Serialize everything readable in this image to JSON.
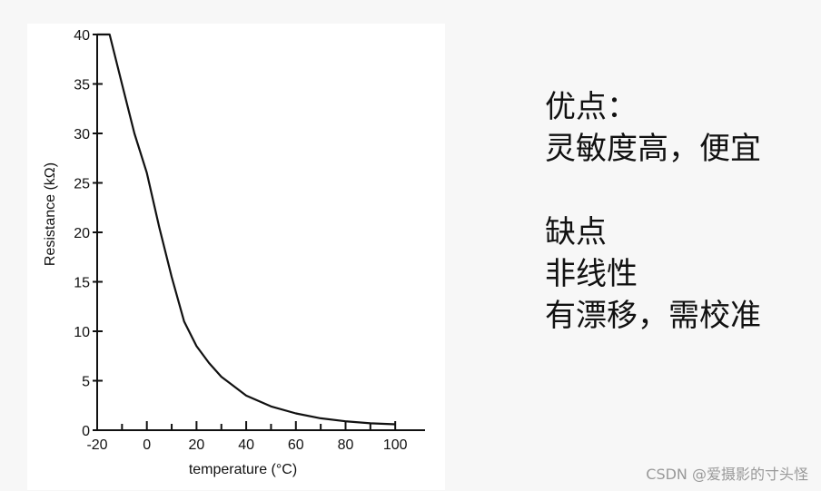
{
  "chart_data": {
    "type": "line",
    "x": [
      -20,
      -15,
      -10,
      -5,
      0,
      5,
      10,
      15,
      20,
      25,
      30,
      40,
      50,
      60,
      70,
      80,
      90,
      100
    ],
    "values": [
      40,
      40,
      35,
      30,
      26,
      20.5,
      15.5,
      11,
      8.5,
      6.8,
      5.4,
      3.5,
      2.4,
      1.7,
      1.2,
      0.9,
      0.7,
      0.6
    ],
    "color": "#111111",
    "xlabel": "temperature (°C)",
    "ylabel": "Resistance (kΩ)",
    "xlim": [
      -20,
      112
    ],
    "ylim": [
      0,
      40
    ],
    "xticks": [
      -20,
      0,
      20,
      40,
      60,
      80,
      100
    ],
    "xminorticks": [
      -10,
      10,
      30,
      50,
      70,
      90
    ],
    "yticks": [
      0,
      5,
      10,
      15,
      20,
      25,
      30,
      35,
      40
    ]
  },
  "notes": {
    "pros_title": "优点：",
    "pros": "灵敏度高，便宜",
    "cons_title": "缺点",
    "cons": [
      "非线性",
      "有漂移，需校准"
    ]
  },
  "watermark": "CSDN @爱摄影的寸头怪"
}
